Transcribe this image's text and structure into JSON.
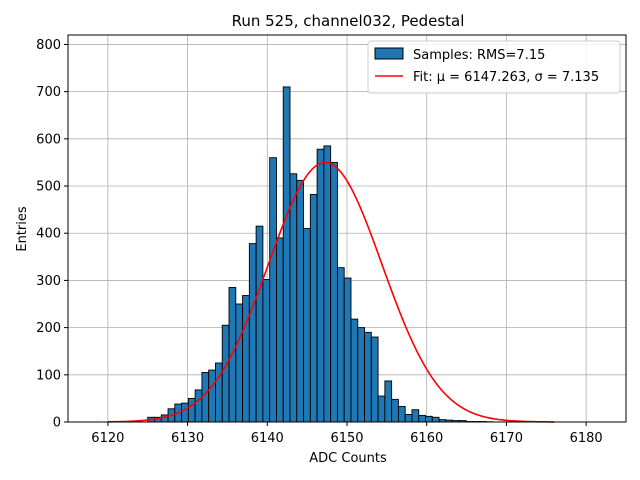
{
  "chart_data": {
    "type": "bar",
    "title": "Run 525, channel032, Pedestal",
    "xlabel": "ADC Counts",
    "ylabel": "Entries",
    "xlim": [
      6115,
      6185
    ],
    "ylim": [
      0,
      820
    ],
    "xticks": [
      6120,
      6130,
      6140,
      6150,
      6160,
      6170,
      6180
    ],
    "yticks": [
      0,
      100,
      200,
      300,
      400,
      500,
      600,
      700,
      800
    ],
    "grid": true,
    "legend_position": "top-right",
    "bins": {
      "start": 6125,
      "width": 0.85,
      "counts": [
        10,
        10,
        15,
        28,
        38,
        40,
        50,
        68,
        105,
        110,
        125,
        205,
        285,
        250,
        268,
        378,
        415,
        302,
        560,
        390,
        710,
        526,
        512,
        410,
        482,
        578,
        585,
        550,
        327,
        305,
        218,
        200,
        190,
        180,
        55,
        87,
        48,
        33,
        16,
        26,
        14,
        12,
        10,
        5,
        4,
        3,
        3,
        1,
        1,
        1,
        0.5
      ]
    },
    "series": [
      {
        "name": "Samples: RMS=7.15",
        "kind": "histogram",
        "color": "#1f77b4",
        "edge_color": "#000000"
      },
      {
        "name": "Fit: μ = 6147.263, σ = 7.135",
        "kind": "line",
        "color": "#ff0000",
        "fit": {
          "mu": 6147.263,
          "sigma": 7.135,
          "amplitude": 550,
          "x_range": [
            6120,
            6176
          ]
        }
      }
    ]
  }
}
